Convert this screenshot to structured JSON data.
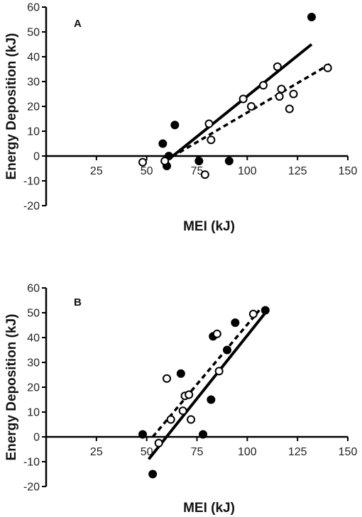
{
  "chart_data": [
    {
      "type": "scatter",
      "panel_label": "A",
      "xlabel": "MEI (kJ)",
      "ylabel": "Energy Deposition (kJ)",
      "xlim": [
        0,
        150
      ],
      "ylim": [
        -20,
        60
      ],
      "x_ticks": [
        25,
        50,
        75,
        100,
        125,
        150
      ],
      "y_ticks": [
        -20,
        -10,
        0,
        10,
        20,
        30,
        40,
        50,
        60
      ],
      "x_tick_labels": [
        "25",
        "50",
        "75",
        "100",
        "125",
        "150"
      ],
      "y_tick_labels": [
        "-20",
        "-10",
        "0",
        "10",
        "20",
        "30",
        "40",
        "50",
        "60"
      ],
      "grid": false,
      "series": [
        {
          "marker": "filled-circle",
          "x": [
            58,
            60,
            61,
            64,
            76,
            91,
            132
          ],
          "y": [
            5,
            -4,
            0,
            12.5,
            -2,
            -2,
            56
          ]
        },
        {
          "marker": "open-circle",
          "x": [
            48,
            59,
            79,
            81,
            82,
            98,
            102,
            108,
            115,
            116,
            117,
            121,
            123,
            140
          ],
          "y": [
            -2.5,
            -2,
            -7.5,
            13,
            6.5,
            23,
            20,
            28.5,
            36,
            24,
            27,
            19,
            25,
            35.5
          ]
        }
      ],
      "fit_lines": [
        {
          "style": "solid",
          "x": [
            63,
            132
          ],
          "y": [
            0,
            45
          ]
        },
        {
          "style": "dashed",
          "x": [
            59,
            141
          ],
          "y": [
            -2,
            37
          ]
        }
      ]
    },
    {
      "type": "scatter",
      "panel_label": "B",
      "xlabel": "MEI (kJ)",
      "ylabel": "Energy Deposition (kJ)",
      "xlim": [
        0,
        150
      ],
      "ylim": [
        -20,
        60
      ],
      "x_ticks": [
        25,
        50,
        75,
        100,
        125,
        150
      ],
      "y_ticks": [
        -20,
        -10,
        0,
        10,
        20,
        30,
        40,
        50,
        60
      ],
      "x_tick_labels": [
        "25",
        "50",
        "75",
        "100",
        "125",
        "150"
      ],
      "y_tick_labels": [
        "-20",
        "-10",
        "0",
        "10",
        "20",
        "30",
        "40",
        "50",
        "60"
      ],
      "grid": false,
      "series": [
        {
          "marker": "filled-circle",
          "x": [
            48,
            53,
            67,
            78,
            82,
            83,
            90,
            94,
            109
          ],
          "y": [
            1,
            -15,
            25.5,
            1,
            15,
            40.5,
            35,
            46,
            51
          ]
        },
        {
          "marker": "open-circle",
          "x": [
            56,
            60,
            62,
            68,
            69,
            71,
            72,
            85,
            86,
            103
          ],
          "y": [
            -2.5,
            23.5,
            7,
            10.5,
            16.5,
            17,
            7,
            41.5,
            26.5,
            49.5
          ]
        }
      ],
      "fit_lines": [
        {
          "style": "solid",
          "x": [
            51,
            110
          ],
          "y": [
            -9,
            51
          ]
        },
        {
          "style": "dashed",
          "x": [
            53,
            106
          ],
          "y": [
            0,
            51
          ]
        }
      ]
    }
  ]
}
